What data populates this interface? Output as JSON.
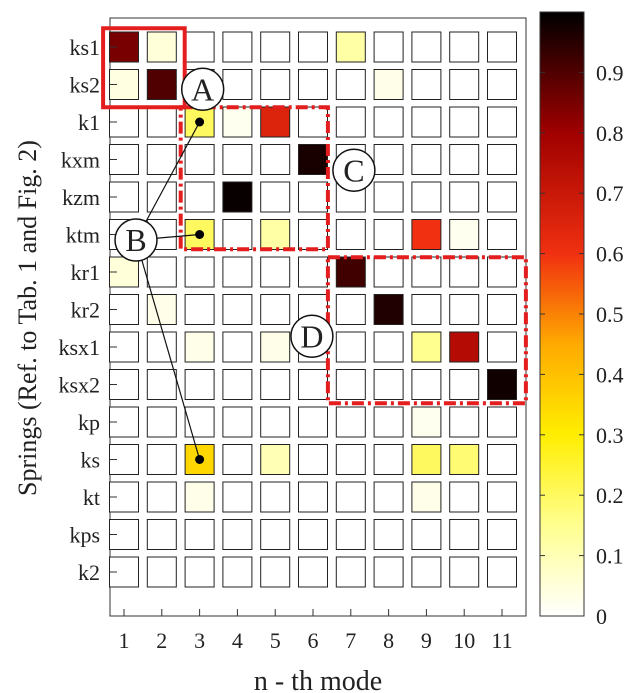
{
  "chart_data": {
    "type": "heatmap",
    "title": "",
    "xlabel": "n - th mode",
    "ylabel": "Springs (Ref. to Tab. 1 and Fig. 2)",
    "x_categories": [
      "1",
      "2",
      "3",
      "4",
      "5",
      "6",
      "7",
      "8",
      "9",
      "10",
      "11"
    ],
    "y_categories": [
      "ks1",
      "ks2",
      "k1",
      "kxm",
      "kzm",
      "ktm",
      "kr1",
      "kr2",
      "ksx1",
      "ksx2",
      "kp",
      "ks",
      "kt",
      "kps",
      "k2"
    ],
    "values": [
      [
        0.85,
        0.05,
        0,
        0,
        0,
        0,
        0.12,
        0,
        0,
        0,
        0
      ],
      [
        0.04,
        0.9,
        0,
        0,
        0,
        0,
        0,
        0.03,
        0,
        0,
        0
      ],
      [
        0,
        0,
        0.2,
        0.02,
        0.65,
        0,
        0,
        0,
        0,
        0,
        0
      ],
      [
        0,
        0,
        0,
        0,
        0,
        0.97,
        0,
        0,
        0,
        0,
        0
      ],
      [
        0,
        0,
        0,
        0.99,
        0,
        0,
        0,
        0,
        0,
        0,
        0
      ],
      [
        0,
        0,
        0.2,
        0,
        0.12,
        0,
        0,
        0,
        0.6,
        0.02,
        0
      ],
      [
        0.05,
        0,
        0,
        0,
        0,
        0,
        0.92,
        0,
        0,
        0,
        0
      ],
      [
        0,
        0.03,
        0,
        0,
        0,
        0,
        0,
        0.96,
        0,
        0,
        0
      ],
      [
        0,
        0,
        0.03,
        0,
        0.03,
        0,
        0,
        0,
        0.15,
        0.75,
        0
      ],
      [
        0,
        0,
        0,
        0,
        0,
        0,
        0,
        0,
        0,
        0,
        0.98
      ],
      [
        0,
        0,
        0,
        0,
        0,
        0,
        0,
        0,
        0.02,
        0,
        0
      ],
      [
        0,
        0,
        0.35,
        0,
        0.1,
        0,
        0,
        0,
        0.2,
        0.18,
        0
      ],
      [
        0,
        0,
        0.03,
        0,
        0,
        0,
        0,
        0,
        0.03,
        0,
        0
      ],
      [
        0,
        0,
        0,
        0,
        0,
        0,
        0,
        0,
        0,
        0,
        0
      ],
      [
        0,
        0,
        0,
        0,
        0,
        0,
        0,
        0,
        0,
        0,
        0
      ]
    ],
    "colorbar": {
      "range": [
        0,
        1
      ],
      "ticks": [
        "0",
        "0.1",
        "0.2",
        "0.3",
        "0.4",
        "0.5",
        "0.6",
        "0.7",
        "0.8",
        "0.9"
      ],
      "colormap": "hot (reversed)"
    },
    "annotations": {
      "labels": [
        "A",
        "B",
        "C",
        "D"
      ],
      "groups": {
        "A": {
          "rows": [
            "ks1",
            "ks2"
          ],
          "cols": [
            "1",
            "2"
          ],
          "style": "solid red box"
        },
        "C": {
          "rows": [
            "k1",
            "kxm",
            "kzm",
            "ktm"
          ],
          "cols": [
            "3",
            "4",
            "5",
            "6"
          ],
          "style": "dash-dot red box"
        },
        "D": {
          "rows": [
            "kr1",
            "kr2",
            "ksx1",
            "ksx2"
          ],
          "cols": [
            "7",
            "8",
            "9",
            "10",
            "11"
          ],
          "style": "dash-dot red box"
        },
        "B": {
          "points": [
            [
              "k1",
              "3"
            ],
            [
              "ktm",
              "3"
            ],
            [
              "ks",
              "3"
            ]
          ],
          "style": "leader lines"
        }
      },
      "accent_color": "#e41e1e"
    }
  }
}
